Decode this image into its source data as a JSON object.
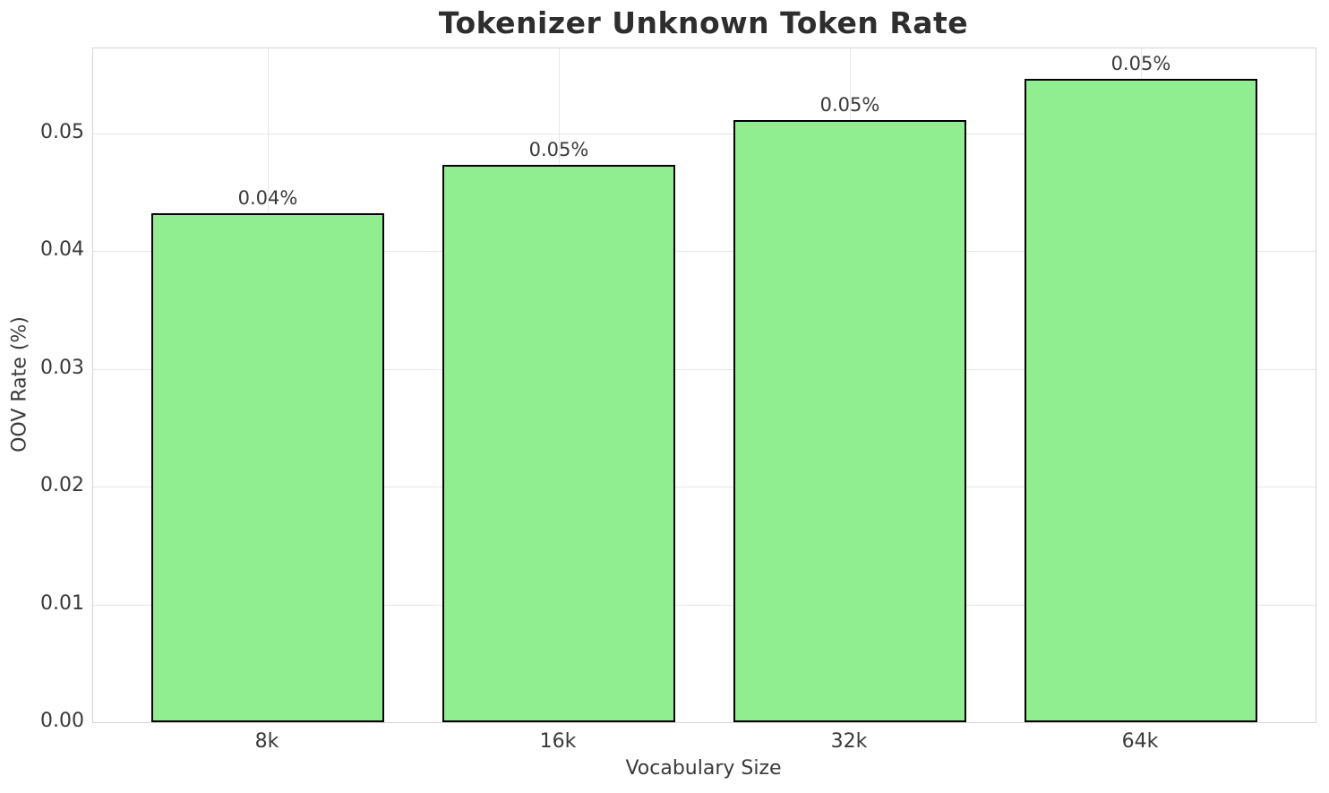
{
  "chart_data": {
    "type": "bar",
    "title": "Tokenizer Unknown Token Rate",
    "xlabel": "Vocabulary Size",
    "ylabel": "OOV Rate (%)",
    "categories": [
      "8k",
      "16k",
      "32k",
      "64k"
    ],
    "values": [
      0.0432,
      0.0473,
      0.0511,
      0.0546
    ],
    "bar_labels": [
      "0.04%",
      "0.05%",
      "0.05%",
      "0.05%"
    ],
    "ylim": [
      0,
      0.0572
    ],
    "yticks": [
      0,
      0.01,
      0.02,
      0.03,
      0.04,
      0.05
    ],
    "ytick_labels": [
      "0.00",
      "0.01",
      "0.02",
      "0.03",
      "0.04",
      "0.05"
    ],
    "grid": true,
    "legend": false,
    "bar_color": "#90EE90",
    "bar_edge_color": "#000000"
  }
}
